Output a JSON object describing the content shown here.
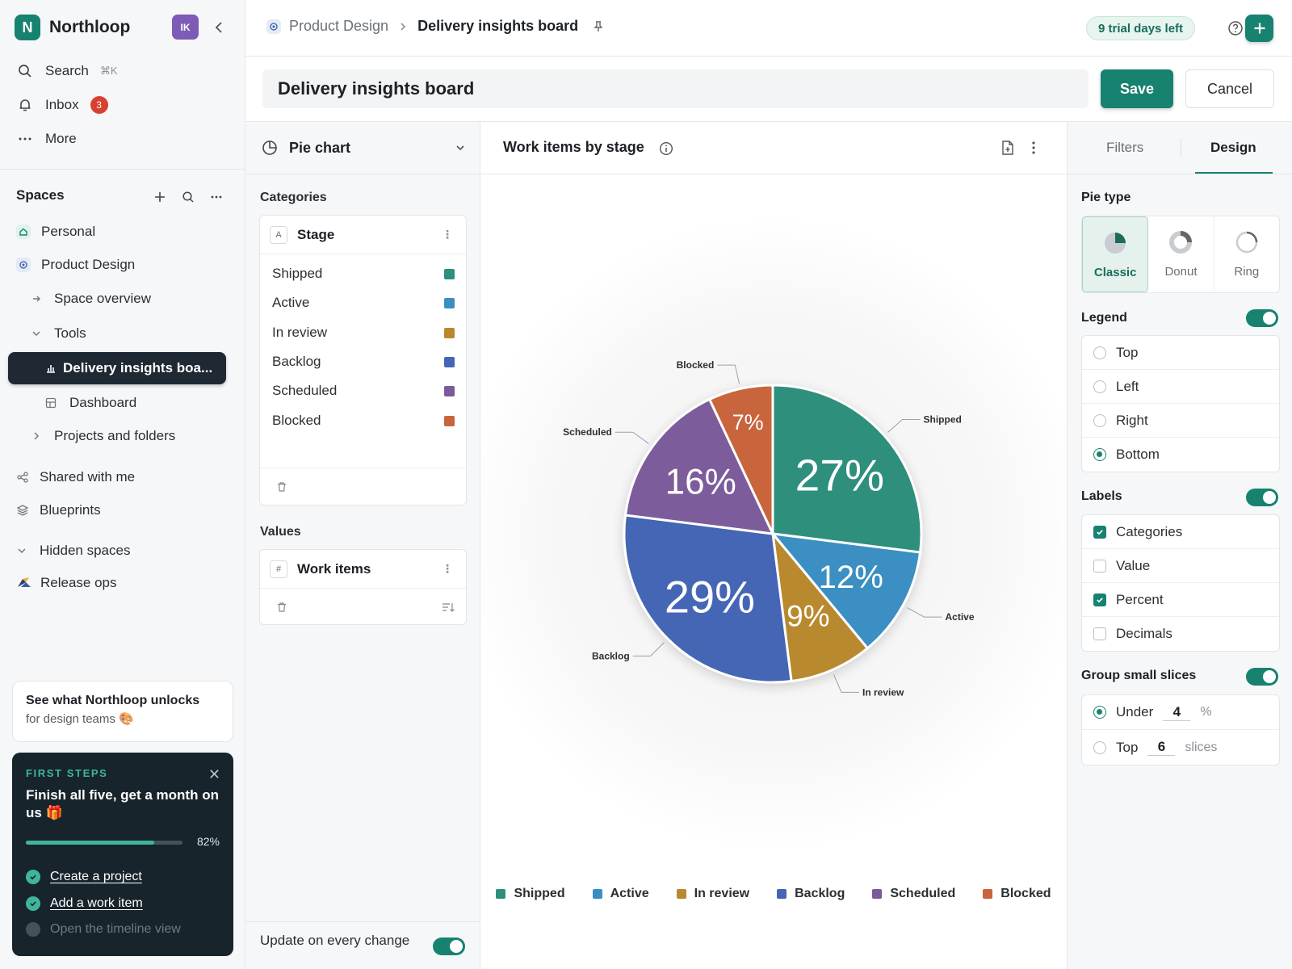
{
  "workspace": {
    "name": "Northloop",
    "logo_letter": "N",
    "avatar_initials": "IK"
  },
  "nav": {
    "search_label": "Search",
    "search_shortcut": "⌘K",
    "inbox_label": "Inbox",
    "inbox_count": "3",
    "more_label": "More"
  },
  "spaces": {
    "heading": "Spaces",
    "personal": "Personal",
    "product_design": "Product Design",
    "space_overview": "Space overview",
    "tools": "Tools",
    "active_item": "Delivery insights boa...",
    "dashboard": "Dashboard",
    "projects_folders": "Projects and folders",
    "shared": "Shared with me",
    "blueprints": "Blueprints",
    "hidden": "Hidden spaces",
    "release_ops": "Release ops"
  },
  "promo": {
    "title": "See what Northloop unlocks",
    "subtitle": "for design teams 🎨"
  },
  "first_steps": {
    "label": "FIRST STEPS",
    "heading": "Finish all five, get a month on us 🎁",
    "progress": 0.82,
    "progress_text": "82%",
    "steps": [
      {
        "label": "Create a project",
        "done": true
      },
      {
        "label": "Add a work item",
        "done": true
      },
      {
        "label": "Open the timeline view",
        "done": false
      }
    ]
  },
  "breadcrumb": {
    "space": "Product Design",
    "current": "Delivery insights board"
  },
  "trial": "9 trial days left",
  "board": {
    "title": "Delivery insights board",
    "save": "Save",
    "cancel": "Cancel"
  },
  "config": {
    "chart_type": "Pie chart",
    "categories_heading": "Categories",
    "category_field": "Stage",
    "category_tag": "A",
    "categories": [
      "Shipped",
      "Active",
      "In review",
      "Backlog",
      "Scheduled",
      "Blocked"
    ],
    "values_heading": "Values",
    "value_field": "Work items",
    "value_tag": "#",
    "update_label": "Update on every change"
  },
  "colors": {
    "accent": "#17826f",
    "Shipped": "#2e8f7c",
    "Active": "#3a8fc2",
    "In review": "#b8892d",
    "Backlog": "#4466b5",
    "Scheduled": "#7b5b9b",
    "Blocked": "#c8653c"
  },
  "chart_data": {
    "type": "pie",
    "title": "Work items by stage",
    "categories": [
      "Shipped",
      "Active",
      "In review",
      "Backlog",
      "Scheduled",
      "Blocked"
    ],
    "values": [
      27,
      12,
      9,
      29,
      16,
      7
    ],
    "value_labels": [
      "27%",
      "12%",
      "9%",
      "29%",
      "16%",
      "7%"
    ],
    "legend_position": "bottom"
  },
  "design": {
    "tabs": [
      "Filters",
      "Design"
    ],
    "active_tab": "Design",
    "pie_type_heading": "Pie type",
    "pie_types": [
      "Classic",
      "Donut",
      "Ring"
    ],
    "legend_heading": "Legend",
    "legend_options": [
      "Top",
      "Left",
      "Right",
      "Bottom"
    ],
    "legend_selected": "Bottom",
    "labels_heading": "Labels",
    "label_options": [
      {
        "label": "Categories",
        "checked": true
      },
      {
        "label": "Value",
        "checked": false
      },
      {
        "label": "Percent",
        "checked": true
      },
      {
        "label": "Decimals",
        "checked": false
      }
    ],
    "group_heading": "Group small slices",
    "under_label": "Under",
    "under_value": "4",
    "under_unit": "%",
    "top_label": "Top",
    "top_value": "6",
    "top_unit": "slices"
  }
}
